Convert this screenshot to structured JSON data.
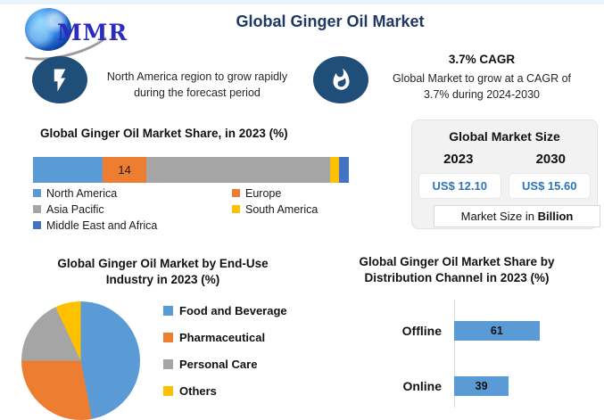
{
  "header": {
    "logo_text": "MMR",
    "title": "Global Ginger Oil Market"
  },
  "callouts": {
    "left": {
      "icon": "lightning-icon",
      "text": "North America region to grow rapidly during the forecast period"
    },
    "right": {
      "icon": "flame-icon",
      "heading": "3.7% CAGR",
      "text": "Global Market to grow at a CAGR of 3.7% during 2024-2030"
    }
  },
  "market_size": {
    "title": "Global Market Size",
    "years": [
      "2023",
      "2030"
    ],
    "values": [
      "US$ 12.10",
      "US$ 15.60"
    ],
    "note_prefix": "Market Size in ",
    "note_bold": "Billion"
  },
  "colors": {
    "title_navy": "#1F3864",
    "icon_badge_blue": "#1F4E79",
    "value_blue": "#2E75B6",
    "panel_gray": "#F2F2F2"
  },
  "chart_data": [
    {
      "type": "bar",
      "subtype": "stacked-horizontal-100pct",
      "title": "Global Ginger Oil Market Share, in 2023 (%)",
      "series": [
        {
          "name": "North America",
          "value": 22,
          "color": "#5B9BD5"
        },
        {
          "name": "Europe",
          "value": 14,
          "color": "#ED7D31",
          "data_label": "14"
        },
        {
          "name": "Asia Pacific",
          "value": 58,
          "color": "#A5A5A5"
        },
        {
          "name": "South America",
          "value": 3,
          "color": "#FFC000"
        },
        {
          "name": "Middle East and Africa",
          "value": 3,
          "color": "#4472C4"
        }
      ],
      "legend_position": "bottom",
      "grid": false
    },
    {
      "type": "pie",
      "title": "Global Ginger Oil Market by End-Use Industry in 2023 (%)",
      "slices": [
        {
          "name": "Food and Beverage",
          "value": 47,
          "color": "#5B9BD5"
        },
        {
          "name": "Pharmaceutical",
          "value": 28,
          "color": "#ED7D31"
        },
        {
          "name": "Personal Care",
          "value": 18,
          "color": "#A5A5A5"
        },
        {
          "name": "Others",
          "value": 7,
          "color": "#FFC000"
        }
      ],
      "start_angle_deg": 0,
      "direction": "clockwise",
      "legend_position": "right"
    },
    {
      "type": "bar",
      "subtype": "horizontal",
      "title": "Global Ginger Oil Market Share by Distribution Channel in 2023 (%)",
      "categories": [
        "Offline",
        "Online"
      ],
      "values": [
        61,
        39
      ],
      "bar_color": "#5B9BD5",
      "xlim": [
        0,
        100
      ],
      "data_labels": true,
      "grid": false
    }
  ]
}
